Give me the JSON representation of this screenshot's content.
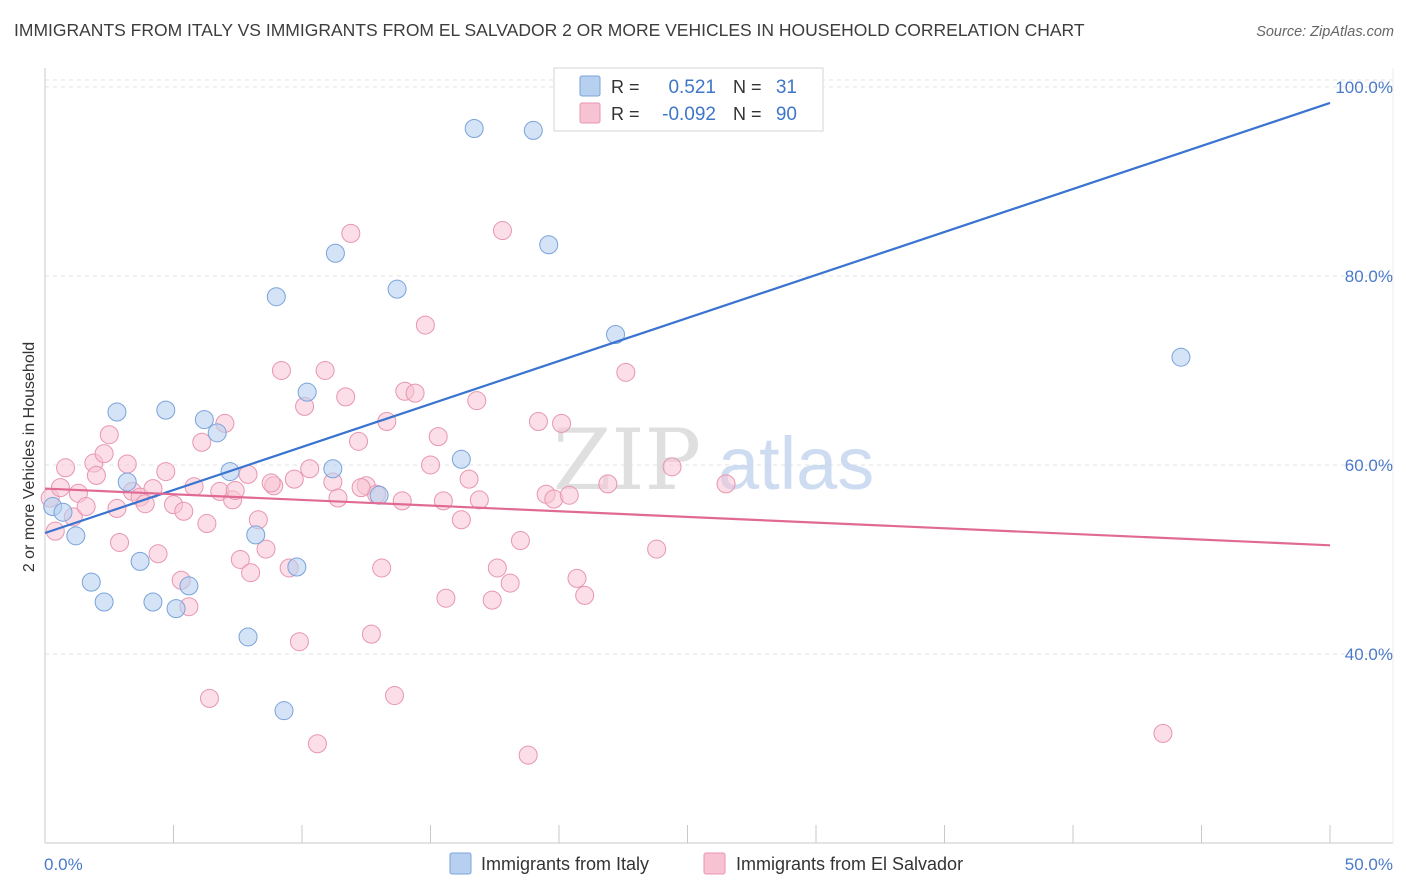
{
  "header": {
    "title": "IMMIGRANTS FROM ITALY VS IMMIGRANTS FROM EL SALVADOR 2 OR MORE VEHICLES IN HOUSEHOLD CORRELATION CHART",
    "source": "Source: ZipAtlas.com"
  },
  "watermark": "ZIPatlas",
  "legend": {
    "r_label": "R =",
    "n_label": "N =",
    "rows": [
      {
        "r": "0.521",
        "n": "31"
      },
      {
        "r": "-0.092",
        "n": "90"
      }
    ]
  },
  "colors": {
    "italy_fill": "#b8d0f0",
    "italy_stroke": "#7aa3da",
    "italy_line": "#3a74d0",
    "elsalvador_fill": "#f7c3d3",
    "elsalvador_stroke": "#e896b0",
    "elsalvador_line": "#e06a94"
  },
  "chart_data": {
    "type": "scatter",
    "title": "IMMIGRANTS FROM ITALY VS IMMIGRANTS FROM EL SALVADOR 2 OR MORE VEHICLES IN HOUSEHOLD CORRELATION CHART",
    "xlabel": "",
    "ylabel": "2 or more Vehicles in Household",
    "xlim": [
      0,
      50
    ],
    "ylim": [
      20,
      102
    ],
    "x_tick_labels": [
      "0.0%",
      "50.0%"
    ],
    "y_ticks": [
      40,
      60,
      80,
      100
    ],
    "y_tick_labels": [
      "40.0%",
      "60.0%",
      "80.0%",
      "100.0%"
    ],
    "grid": true,
    "legend_position": "top-center",
    "series": [
      {
        "name": "Immigrants from Italy",
        "r": 0.521,
        "n": 31,
        "trend": {
          "x": [
            0,
            50
          ],
          "y": [
            52.8,
            98.3
          ]
        },
        "points": [
          [
            0.3,
            55.6
          ],
          [
            0.7,
            55
          ],
          [
            1.2,
            52.5
          ],
          [
            1.8,
            47.6
          ],
          [
            2.3,
            45.5
          ],
          [
            2.8,
            65.6
          ],
          [
            3.2,
            58.2
          ],
          [
            3.7,
            49.8
          ],
          [
            4.2,
            45.5
          ],
          [
            4.7,
            65.8
          ],
          [
            5.1,
            44.8
          ],
          [
            5.6,
            47.2
          ],
          [
            6.2,
            64.8
          ],
          [
            6.7,
            63.4
          ],
          [
            7.2,
            59.3
          ],
          [
            7.9,
            41.8
          ],
          [
            8.2,
            52.6
          ],
          [
            9.0,
            77.8
          ],
          [
            9.3,
            34
          ],
          [
            9.8,
            49.2
          ],
          [
            10.2,
            67.7
          ],
          [
            11.2,
            59.6
          ],
          [
            11.3,
            82.4
          ],
          [
            13.0,
            56.8
          ],
          [
            13.7,
            78.6
          ],
          [
            16.2,
            60.6
          ],
          [
            16.7,
            95.6
          ],
          [
            19.0,
            95.4
          ],
          [
            19.6,
            83.3
          ],
          [
            22.2,
            73.8
          ],
          [
            44.2,
            71.4
          ]
        ]
      },
      {
        "name": "Immigrants from El Salvador",
        "r": -0.092,
        "n": 90,
        "trend": {
          "x": [
            0,
            50
          ],
          "y": [
            57.5,
            51.5
          ]
        },
        "points": [
          [
            0.2,
            56.5
          ],
          [
            0.4,
            53
          ],
          [
            0.6,
            57.6
          ],
          [
            0.8,
            59.7
          ],
          [
            1.1,
            54.5
          ],
          [
            1.3,
            57
          ],
          [
            1.6,
            55.6
          ],
          [
            1.9,
            60.2
          ],
          [
            2.0,
            58.9
          ],
          [
            2.3,
            61.2
          ],
          [
            2.5,
            63.2
          ],
          [
            2.8,
            55.4
          ],
          [
            2.9,
            51.8
          ],
          [
            3.2,
            60.1
          ],
          [
            3.4,
            57.2
          ],
          [
            3.7,
            56.6
          ],
          [
            3.9,
            55.9
          ],
          [
            4.2,
            57.5
          ],
          [
            4.4,
            50.6
          ],
          [
            4.7,
            59.3
          ],
          [
            5.0,
            55.8
          ],
          [
            5.3,
            47.8
          ],
          [
            5.6,
            45
          ],
          [
            5.8,
            57.7
          ],
          [
            6.1,
            62.4
          ],
          [
            6.3,
            53.8
          ],
          [
            6.4,
            35.3
          ],
          [
            6.8,
            57.2
          ],
          [
            7.0,
            64.4
          ],
          [
            7.3,
            56.3
          ],
          [
            7.6,
            50
          ],
          [
            7.9,
            59
          ],
          [
            8.0,
            48.6
          ],
          [
            8.3,
            54.2
          ],
          [
            8.6,
            51.1
          ],
          [
            8.9,
            57.8
          ],
          [
            9.2,
            70
          ],
          [
            9.5,
            49.1
          ],
          [
            9.7,
            58.5
          ],
          [
            9.9,
            41.3
          ],
          [
            10.3,
            59.6
          ],
          [
            10.6,
            30.5
          ],
          [
            10.9,
            70
          ],
          [
            11.2,
            58.2
          ],
          [
            11.4,
            56.5
          ],
          [
            11.7,
            67.2
          ],
          [
            11.9,
            84.5
          ],
          [
            12.2,
            62.5
          ],
          [
            12.5,
            57.8
          ],
          [
            12.9,
            56.9
          ],
          [
            13.1,
            49.1
          ],
          [
            13.3,
            64.6
          ],
          [
            13.6,
            35.6
          ],
          [
            13.9,
            56.2
          ],
          [
            14.0,
            67.8
          ],
          [
            14.4,
            67.6
          ],
          [
            15.0,
            60
          ],
          [
            15.3,
            63
          ],
          [
            15.5,
            56.2
          ],
          [
            15.6,
            45.9
          ],
          [
            16.2,
            54.2
          ],
          [
            16.5,
            58.5
          ],
          [
            16.8,
            66.8
          ],
          [
            17.4,
            45.7
          ],
          [
            17.6,
            49.1
          ],
          [
            17.8,
            84.8
          ],
          [
            18.5,
            52
          ],
          [
            18.8,
            29.3
          ],
          [
            19.2,
            64.6
          ],
          [
            19.5,
            56.9
          ],
          [
            19.8,
            56.4
          ],
          [
            20.1,
            64.4
          ],
          [
            20.4,
            56.8
          ],
          [
            20.7,
            48
          ],
          [
            21.0,
            46.2
          ],
          [
            21.9,
            58
          ],
          [
            22.6,
            69.8
          ],
          [
            23.8,
            51.1
          ],
          [
            24.4,
            59.8
          ],
          [
            26.5,
            58
          ],
          [
            10.1,
            66.2
          ],
          [
            12.3,
            57.6
          ],
          [
            5.4,
            55.1
          ],
          [
            8.8,
            58.1
          ],
          [
            16.9,
            56.3
          ],
          [
            18.1,
            47.5
          ],
          [
            7.4,
            57.3
          ],
          [
            12.7,
            42.1
          ],
          [
            14.8,
            74.8
          ],
          [
            43.5,
            31.6
          ]
        ]
      }
    ]
  },
  "bottom_legend": {
    "italy_label": "Immigrants from Italy",
    "elsalvador_label": "Immigrants from El Salvador"
  }
}
